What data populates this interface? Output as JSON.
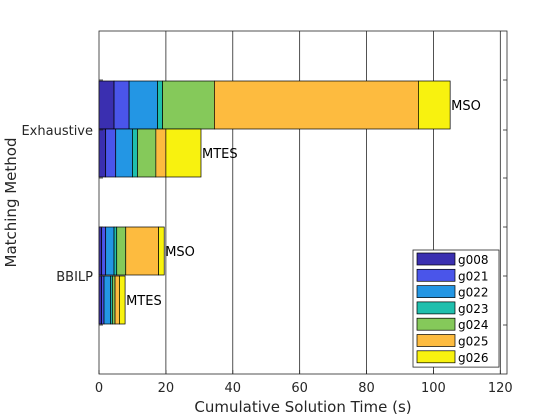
{
  "chart_data": {
    "type": "bar",
    "orientation": "horizontal",
    "stacked": true,
    "xlabel": "Cumulative Solution Time (s)",
    "ylabel": "Matching Method",
    "xlim": [
      0,
      122
    ],
    "xticks": [
      "0",
      "20",
      "40",
      "60",
      "80",
      "100",
      "120"
    ],
    "xtick_values": [
      0,
      20,
      40,
      60,
      80,
      100,
      120
    ],
    "categories": [
      "Exhaustive",
      "BBILP"
    ],
    "grid": "vertical",
    "legend_position": "bottom-right",
    "series": [
      {
        "name": "g008",
        "color": "#3a2fb0"
      },
      {
        "name": "g021",
        "color": "#4a55ea"
      },
      {
        "name": "g022",
        "color": "#2396e4"
      },
      {
        "name": "g023",
        "color": "#1fbfad"
      },
      {
        "name": "g024",
        "color": "#85c95a"
      },
      {
        "name": "g025",
        "color": "#fdbb3f"
      },
      {
        "name": "g026",
        "color": "#f8f20f"
      }
    ],
    "bars": [
      {
        "category": "Exhaustive",
        "label": "MSO",
        "segments": [
          {
            "series": "g008",
            "value": 4.5
          },
          {
            "series": "g021",
            "value": 4.5
          },
          {
            "series": "g022",
            "value": 8.5
          },
          {
            "series": "g023",
            "value": 1.5
          },
          {
            "series": "g024",
            "value": 15.5
          },
          {
            "series": "g025",
            "value": 61.0
          },
          {
            "series": "g026",
            "value": 9.5
          }
        ]
      },
      {
        "category": "Exhaustive",
        "label": "MTES",
        "segments": [
          {
            "series": "g008",
            "value": 2.0
          },
          {
            "series": "g021",
            "value": 3.0
          },
          {
            "series": "g022",
            "value": 5.0
          },
          {
            "series": "g023",
            "value": 1.5
          },
          {
            "series": "g024",
            "value": 5.5
          },
          {
            "series": "g025",
            "value": 3.0
          },
          {
            "series": "g026",
            "value": 10.5
          }
        ]
      },
      {
        "category": "BBILP",
        "label": "MSO",
        "segments": [
          {
            "series": "g008",
            "value": 0.8
          },
          {
            "series": "g021",
            "value": 1.2
          },
          {
            "series": "g022",
            "value": 2.5
          },
          {
            "series": "g023",
            "value": 0.8
          },
          {
            "series": "g024",
            "value": 2.7
          },
          {
            "series": "g025",
            "value": 9.8
          },
          {
            "series": "g026",
            "value": 1.7
          }
        ]
      },
      {
        "category": "BBILP",
        "label": "MTES",
        "segments": [
          {
            "series": "g008",
            "value": 0.8
          },
          {
            "series": "g021",
            "value": 0.7
          },
          {
            "series": "g022",
            "value": 2.0
          },
          {
            "series": "g023",
            "value": 0.5
          },
          {
            "series": "g024",
            "value": 0.8
          },
          {
            "series": "g025",
            "value": 1.3
          },
          {
            "series": "g026",
            "value": 1.7
          }
        ]
      }
    ]
  }
}
